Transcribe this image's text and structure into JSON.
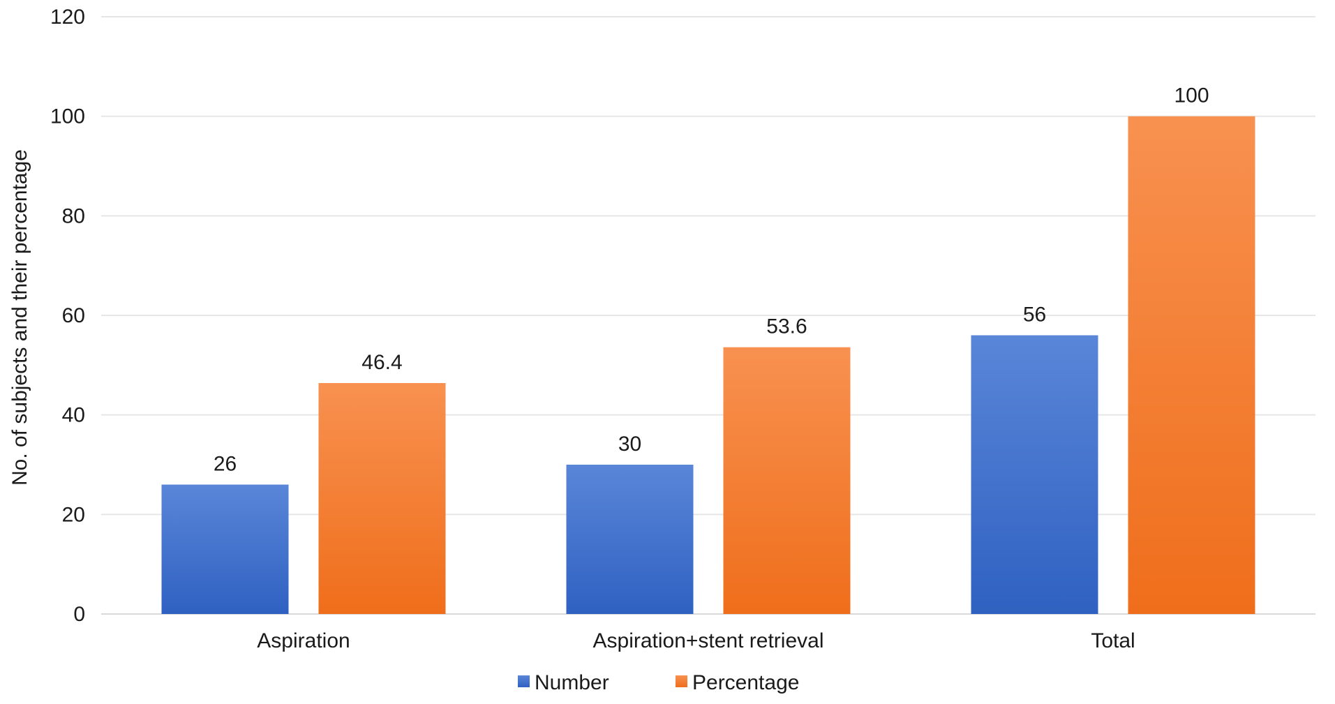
{
  "chart_data": {
    "type": "bar",
    "title": "",
    "xlabel": "",
    "ylabel": "No. of subjects and their percentage",
    "categories": [
      "Aspiration",
      "Aspiration+stent retrieval",
      "Total"
    ],
    "series": [
      {
        "name": "Number",
        "values": [
          26,
          30,
          56
        ],
        "labels": [
          "26",
          "30",
          "56"
        ],
        "color_top": "#5a86d8",
        "color_bottom": "#2f61c2"
      },
      {
        "name": "Percentage",
        "values": [
          46.4,
          53.6,
          100
        ],
        "labels": [
          "46.4",
          "53.6",
          "100"
        ],
        "color_top": "#f89150",
        "color_bottom": "#ef6e1b"
      }
    ],
    "ylim": [
      0,
      120
    ],
    "yticks": [
      0,
      20,
      40,
      60,
      80,
      100,
      120
    ],
    "ytick_labels": [
      "0",
      "20",
      "40",
      "60",
      "80",
      "100",
      "120"
    ],
    "grid": true,
    "legend_position": "bottom"
  },
  "colors": {
    "number": "#3d6fcd",
    "percentage": "#f47a2c",
    "grid": "#e6e6e6"
  }
}
